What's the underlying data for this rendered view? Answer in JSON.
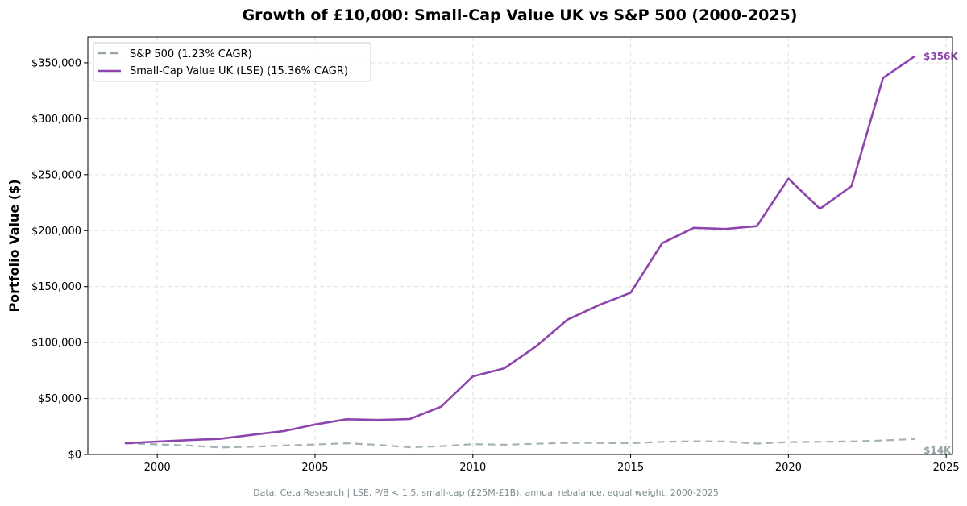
{
  "chart_data": {
    "type": "line",
    "title": "Growth of £10,000: Small-Cap Value UK vs S&P 500 (2000-2025)",
    "xlabel": "",
    "ylabel": "Portfolio Value ($)",
    "xlim": [
      1997.8,
      2025.2
    ],
    "ylim": [
      0,
      373000
    ],
    "xticks": [
      2000,
      2005,
      2010,
      2015,
      2020,
      2025
    ],
    "xtick_labels": [
      "2000",
      "2005",
      "2010",
      "2015",
      "2020",
      "2025"
    ],
    "yticks": [
      0,
      50000,
      100000,
      150000,
      200000,
      250000,
      300000,
      350000
    ],
    "ytick_labels": [
      "$0",
      "$50,000",
      "$100,000",
      "$150,000",
      "$200,000",
      "$250,000",
      "$300,000",
      "$350,000"
    ],
    "grid": true,
    "legend_position": "top-left",
    "x": [
      1999,
      2000,
      2001,
      2002,
      2003,
      2004,
      2005,
      2006,
      2007,
      2008,
      2009,
      2010,
      2011,
      2012,
      2013,
      2014,
      2015,
      2016,
      2017,
      2018,
      2019,
      2020,
      2021,
      2022,
      2023,
      2024
    ],
    "series": [
      {
        "name": "S&P 500 (1.23% CAGR)",
        "color": "#95a5a6",
        "dashed": true,
        "values": [
          10000,
          9100,
          8000,
          6300,
          6900,
          8000,
          8900,
          10000,
          8600,
          6500,
          7400,
          9200,
          8700,
          9600,
          10400,
          10200,
          10100,
          11300,
          11800,
          11600,
          9700,
          11100,
          11300,
          11700,
          12500,
          13800
        ],
        "end_label": "$14K"
      },
      {
        "name": "Small-Cap Value UK (LSE) (15.36% CAGR)",
        "color": "#8e44ad",
        "dashed": false,
        "values": [
          10000,
          11500,
          12800,
          14000,
          17500,
          20800,
          26800,
          31500,
          30800,
          31700,
          42800,
          69800,
          77000,
          96500,
          120500,
          133500,
          144500,
          188800,
          202500,
          201500,
          204000,
          246500,
          219500,
          239800,
          336500,
          355800
        ],
        "end_label": "$356K"
      }
    ],
    "footer": "Data: Ceta Research | LSE, P/B < 1.5, small-cap (£25M-£1B), annual rebalance, equal weight, 2000-2025"
  }
}
